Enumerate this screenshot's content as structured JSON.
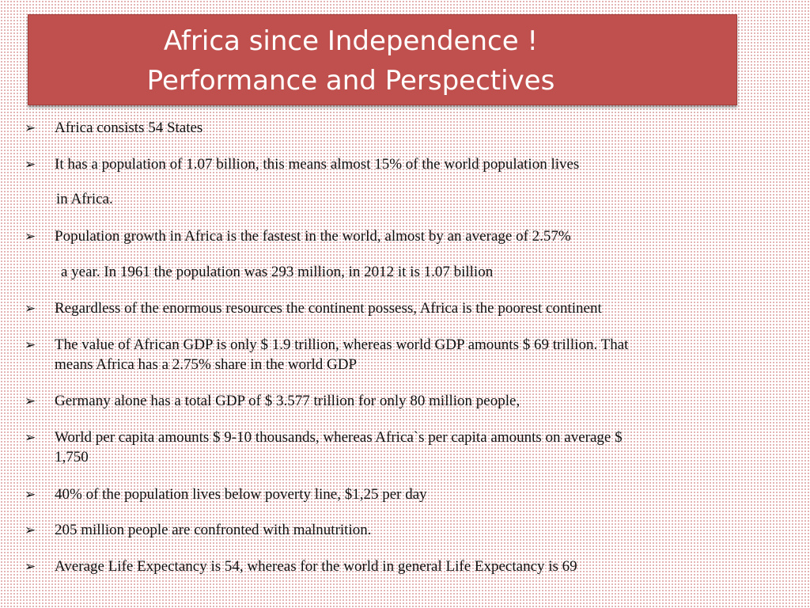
{
  "title": {
    "line1": "Africa since Independence !",
    "line2": "Performance and Perspectives"
  },
  "bullet_icon": "arrowhead-bullet",
  "lines": [
    {
      "text": "Africa consists 54 States",
      "bullet": true
    },
    {
      "text": "It has a population of 1.07 billion, this means almost 15% of the world population lives",
      "bullet": true
    },
    {
      "text": "in Africa.",
      "bullet": false
    },
    {
      "text": "Population growth in Africa is the fastest in the world, almost by an average of  2.57%",
      "bullet": true
    },
    {
      "text": " a year.  In 1961 the population was 293 million, in 2012 it is 1.07 billion",
      "bullet": false
    },
    {
      "text": "Regardless of  the enormous resources the continent possess, Africa is the poorest continent",
      "bullet": true
    },
    {
      "text": "The value of African GDP is only $ 1.9 trillion, whereas world GDP amounts  $ 69 trillion. That",
      "bullet": true
    },
    {
      "text": "means Africa has a 2.75% share in the world GDP",
      "bullet": false
    },
    {
      "text": "Germany alone has a total GDP of $ 3.577 trillion for only 80 million people,",
      "bullet": true
    },
    {
      "text": "World per capita amounts $ 9-10 thousands, whereas Africa`s per capita amounts on average $",
      "bullet": true
    },
    {
      "text": "1,750",
      "bullet": false
    },
    {
      "text": "40% of the population lives below poverty line, $1,25 per day",
      "bullet": true
    },
    {
      "text": "205 million people are confronted with malnutrition.",
      "bullet": true
    },
    {
      "text": "Average Life Expectancy is 54, whereas for the world in general Life Expectancy is 69",
      "bullet": true
    }
  ]
}
